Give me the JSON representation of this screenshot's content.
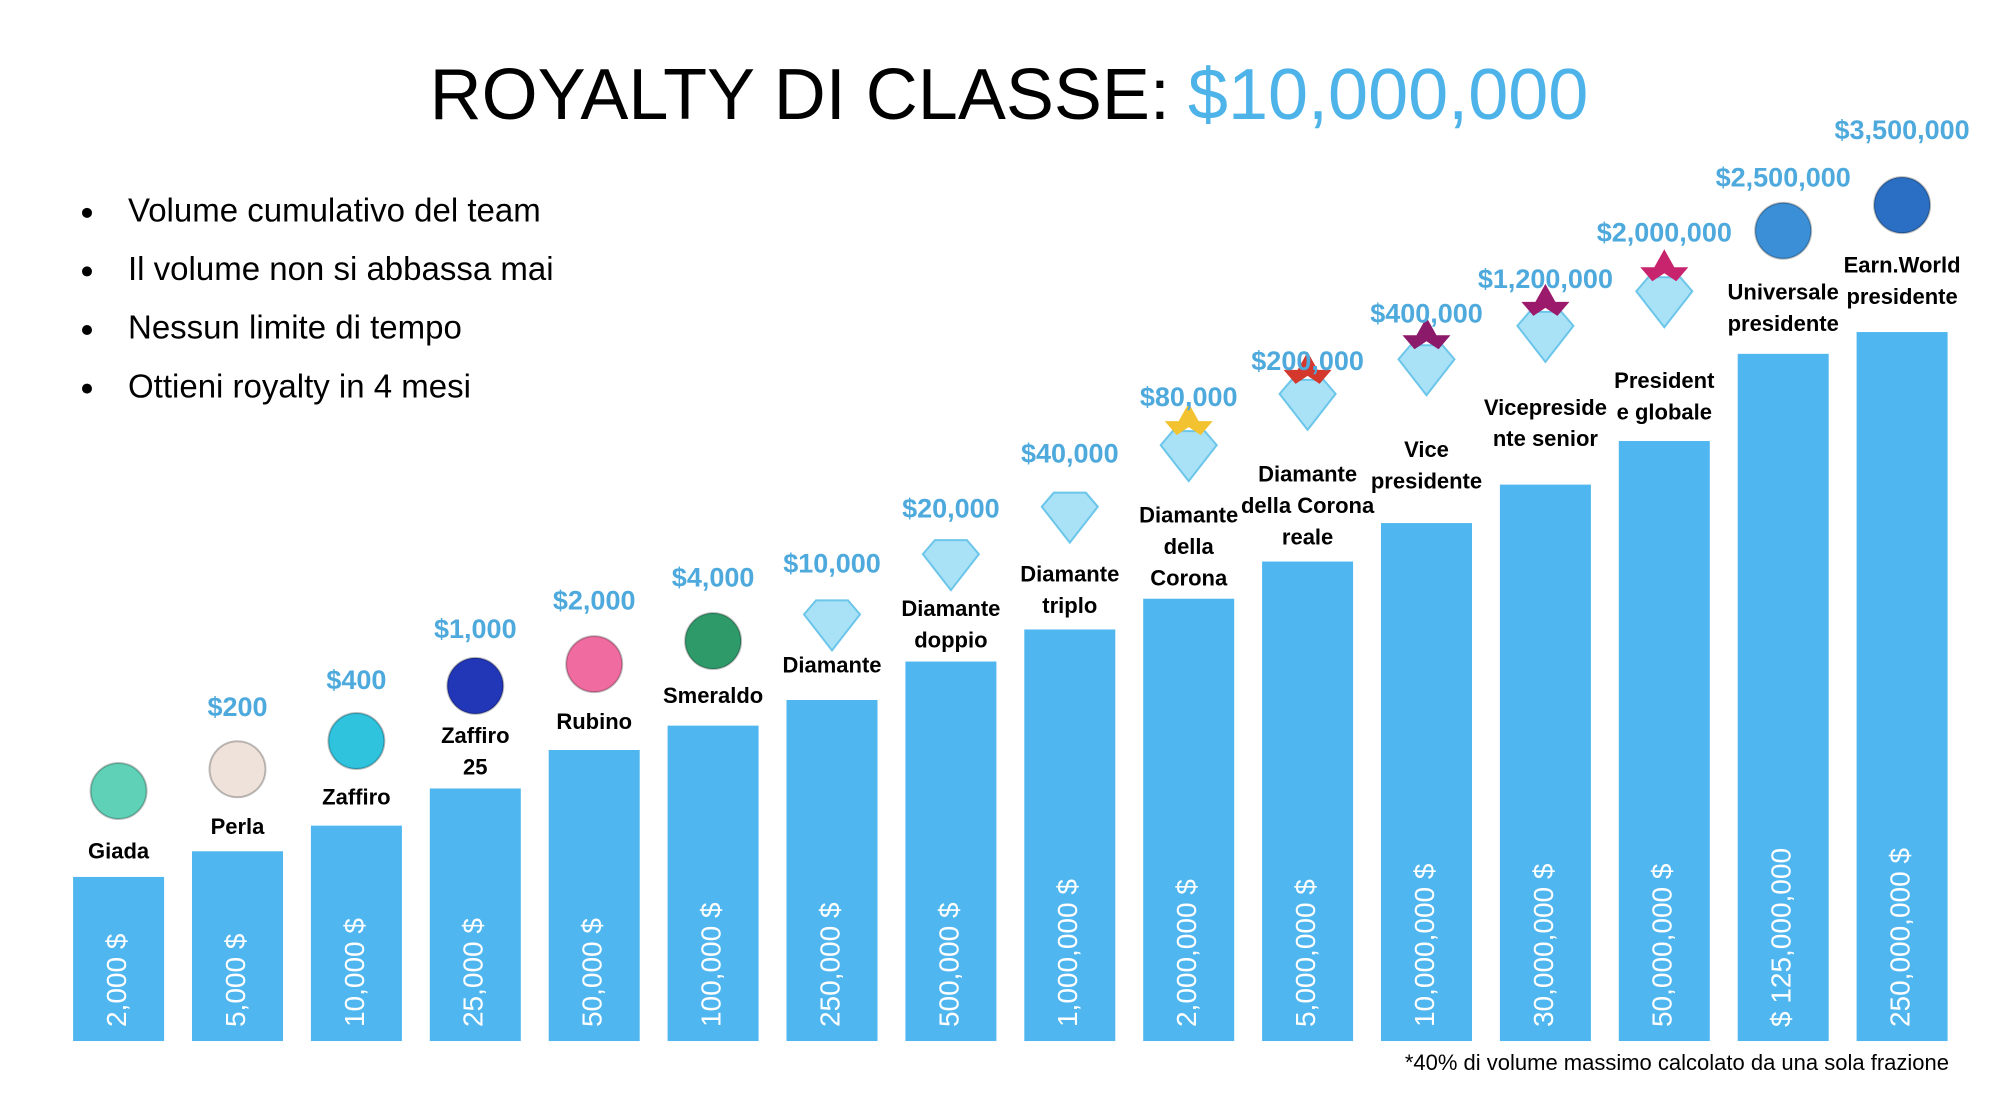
{
  "title": "ROYALTY DI CLASSE:",
  "title_amount": "$10,000,000",
  "bullets": [
    "Volume cumulativo del team",
    "Il volume non si abbassa mai",
    "Nessun limite di tempo",
    "Ottieni royalty in 4 mesi"
  ],
  "levels": [
    {
      "name": [
        "Giada"
      ],
      "volume": "2,000 $"
    },
    {
      "name": [
        "Perla"
      ],
      "reward": "$200",
      "volume": "5,000 $"
    },
    {
      "name": [
        "Zaffiro"
      ],
      "reward": "$400",
      "volume": "10,000 $"
    },
    {
      "name": [
        "Zaffiro",
        "25"
      ],
      "reward": "$1,000",
      "volume": "25,000 $"
    },
    {
      "name": [
        "Rubino"
      ],
      "reward": "$2,000",
      "volume": "50,000 $"
    },
    {
      "name": [
        "Smeraldo"
      ],
      "reward": "$4,000",
      "volume": "100,000 $"
    },
    {
      "name": [
        "Diamante"
      ],
      "reward": "$10,000",
      "volume": "250,000 $"
    },
    {
      "name": [
        "Diamante",
        "doppio"
      ],
      "reward": "$20,000",
      "volume": "500,000 $"
    },
    {
      "name": [
        "Diamante",
        "triplo"
      ],
      "reward": "$40,000",
      "volume": "1,000,000 $"
    },
    {
      "name": [
        "Diamante",
        "della",
        "Corona"
      ],
      "reward": "$80,000",
      "volume": "2,000,000 $"
    },
    {
      "name": [
        "Diamante",
        "della Corona",
        "reale"
      ],
      "reward": "$200,000",
      "volume": "5,000,000 $"
    },
    {
      "name": [
        "Vice",
        "presidente"
      ],
      "reward": "$400,000",
      "volume": "10,000,000 $"
    },
    {
      "name": [
        "Vicepreside",
        "nte senior"
      ],
      "reward": "$1,200,000",
      "volume": "30,000,000 $"
    },
    {
      "name": [
        "President",
        "e globale"
      ],
      "reward": "$2,000,000",
      "volume": "50,000,000 $"
    },
    {
      "name": [
        "Universale",
        "presidente"
      ],
      "reward": "$2,500,000",
      "volume": "$ 125,000,000"
    },
    {
      "name": [
        "Earn.World",
        "presidente"
      ],
      "reward": "$3,500,000",
      "volume": "250,000,000 $"
    }
  ],
  "footnote": "*40% di volume massimo calcolato da una sola frazione"
}
